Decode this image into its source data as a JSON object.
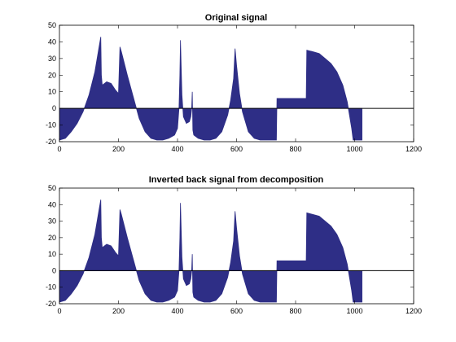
{
  "chart_data": [
    {
      "type": "area",
      "title": "Original signal",
      "xlabel": "",
      "ylabel": "",
      "xlim": [
        0,
        1200
      ],
      "ylim": [
        -20,
        50
      ],
      "xticks": [
        0,
        200,
        400,
        600,
        800,
        1000,
        1200
      ],
      "yticks": [
        -20,
        -10,
        0,
        10,
        20,
        30,
        40,
        50
      ],
      "grid": false,
      "fill_color": "#2e2e86",
      "zero_line_color": "#000000",
      "series": [
        {
          "x": [
            0,
            20,
            40,
            60,
            80,
            100,
            120,
            140,
            142,
            145,
            160,
            175,
            190,
            200,
            205,
            210,
            230,
            250,
            270,
            290,
            310,
            330,
            350,
            370,
            390,
            400,
            405,
            408,
            410,
            415,
            420,
            430,
            440,
            445,
            448,
            450,
            452,
            455,
            470,
            490,
            510,
            530,
            550,
            570,
            580,
            590,
            595,
            600,
            610,
            620,
            640,
            660,
            680,
            700,
            720,
            735,
            737,
            760,
            800,
            830,
            836,
            838,
            860,
            880,
            900,
            920,
            940,
            960,
            975,
            990,
            995,
            1000,
            1020,
            1025
          ],
          "y": [
            -19,
            -18,
            -14,
            -9,
            -2,
            8,
            22,
            43,
            20,
            14,
            16,
            15,
            11,
            9,
            37,
            34,
            20,
            7,
            -6,
            -14,
            -18,
            -19,
            -19,
            -18,
            -16,
            -12,
            0,
            20,
            41,
            8,
            -5,
            -9,
            -8,
            -5,
            0,
            10,
            -13,
            -16,
            -18,
            -19,
            -19,
            -18,
            -14,
            -4,
            5,
            18,
            36,
            26,
            9,
            -2,
            -14,
            -18,
            -19,
            -19,
            -19,
            -19,
            6,
            6,
            6,
            6,
            6,
            35,
            34,
            33,
            30,
            27,
            22,
            14,
            4,
            -12,
            -19,
            -19,
            -19,
            -19
          ]
        }
      ]
    },
    {
      "type": "area",
      "title": "Inverted back signal from decomposition",
      "xlabel": "",
      "ylabel": "",
      "xlim": [
        0,
        1200
      ],
      "ylim": [
        -20,
        50
      ],
      "xticks": [
        0,
        200,
        400,
        600,
        800,
        1000,
        1200
      ],
      "yticks": [
        -20,
        -10,
        0,
        10,
        20,
        30,
        40,
        50
      ],
      "grid": false,
      "fill_color": "#2e2e86",
      "zero_line_color": "#000000",
      "series": [
        {
          "x": [
            0,
            20,
            40,
            60,
            80,
            100,
            120,
            140,
            142,
            145,
            160,
            175,
            190,
            200,
            205,
            210,
            230,
            250,
            270,
            290,
            310,
            330,
            350,
            370,
            390,
            400,
            405,
            408,
            410,
            415,
            420,
            430,
            440,
            445,
            448,
            450,
            452,
            455,
            470,
            490,
            510,
            530,
            550,
            570,
            580,
            590,
            595,
            600,
            610,
            620,
            640,
            660,
            680,
            700,
            720,
            735,
            737,
            760,
            800,
            830,
            836,
            838,
            860,
            880,
            900,
            920,
            940,
            960,
            975,
            990,
            995,
            1000,
            1020,
            1025
          ],
          "y": [
            -19,
            -18,
            -14,
            -9,
            -2,
            8,
            22,
            43,
            20,
            14,
            16,
            15,
            11,
            9,
            37,
            34,
            20,
            7,
            -6,
            -14,
            -18,
            -19,
            -19,
            -18,
            -16,
            -12,
            0,
            20,
            41,
            8,
            -5,
            -9,
            -8,
            -5,
            0,
            10,
            -13,
            -16,
            -18,
            -19,
            -19,
            -18,
            -14,
            -4,
            5,
            18,
            36,
            26,
            9,
            -2,
            -14,
            -18,
            -19,
            -19,
            -19,
            -19,
            6,
            6,
            6,
            6,
            6,
            35,
            34,
            33,
            30,
            27,
            22,
            14,
            4,
            -12,
            -19,
            -19,
            -19,
            -19
          ]
        }
      ]
    }
  ]
}
